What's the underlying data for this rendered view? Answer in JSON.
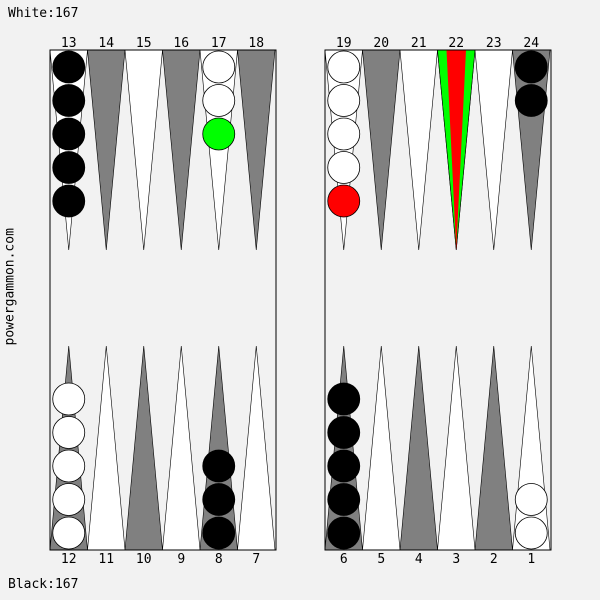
{
  "scores": {
    "white": "White:167",
    "black": "Black:167"
  },
  "site": "powergammon.com",
  "colors": {
    "background": "#f2f2f2",
    "dark_point": "#808080",
    "light_point": "#ffffff",
    "white_checker": "#ffffff",
    "black_checker": "#000000",
    "highlight_green": "#00ff00",
    "highlight_red": "#ff0000"
  },
  "points": [
    {
      "n": 1,
      "label": "1",
      "checkers": 2,
      "color": "white"
    },
    {
      "n": 2,
      "label": "2",
      "checkers": 0,
      "color": ""
    },
    {
      "n": 3,
      "label": "3",
      "checkers": 0,
      "color": ""
    },
    {
      "n": 4,
      "label": "4",
      "checkers": 0,
      "color": ""
    },
    {
      "n": 5,
      "label": "5",
      "checkers": 0,
      "color": ""
    },
    {
      "n": 6,
      "label": "6",
      "checkers": 5,
      "color": "black"
    },
    {
      "n": 7,
      "label": "7",
      "checkers": 0,
      "color": ""
    },
    {
      "n": 8,
      "label": "8",
      "checkers": 3,
      "color": "black"
    },
    {
      "n": 9,
      "label": "9",
      "checkers": 0,
      "color": ""
    },
    {
      "n": 10,
      "label": "10",
      "checkers": 0,
      "color": ""
    },
    {
      "n": 11,
      "label": "11",
      "checkers": 0,
      "color": ""
    },
    {
      "n": 12,
      "label": "12",
      "checkers": 5,
      "color": "white"
    },
    {
      "n": 13,
      "label": "13",
      "checkers": 5,
      "color": "black"
    },
    {
      "n": 14,
      "label": "14",
      "checkers": 0,
      "color": ""
    },
    {
      "n": 15,
      "label": "15",
      "checkers": 0,
      "color": ""
    },
    {
      "n": 16,
      "label": "16",
      "checkers": 0,
      "color": ""
    },
    {
      "n": 17,
      "label": "17",
      "checkers": 3,
      "color": "white",
      "highlight_last": "green"
    },
    {
      "n": 18,
      "label": "18",
      "checkers": 0,
      "color": ""
    },
    {
      "n": 19,
      "label": "19",
      "checkers": 5,
      "color": "white",
      "highlight_last": "red"
    },
    {
      "n": 20,
      "label": "20",
      "checkers": 0,
      "color": ""
    },
    {
      "n": 21,
      "label": "21",
      "checkers": 0,
      "color": ""
    },
    {
      "n": 22,
      "label": "22",
      "checkers": 0,
      "color": "",
      "highlight_point": true
    },
    {
      "n": 23,
      "label": "23",
      "checkers": 0,
      "color": ""
    },
    {
      "n": 24,
      "label": "24",
      "checkers": 2,
      "color": "black"
    }
  ]
}
